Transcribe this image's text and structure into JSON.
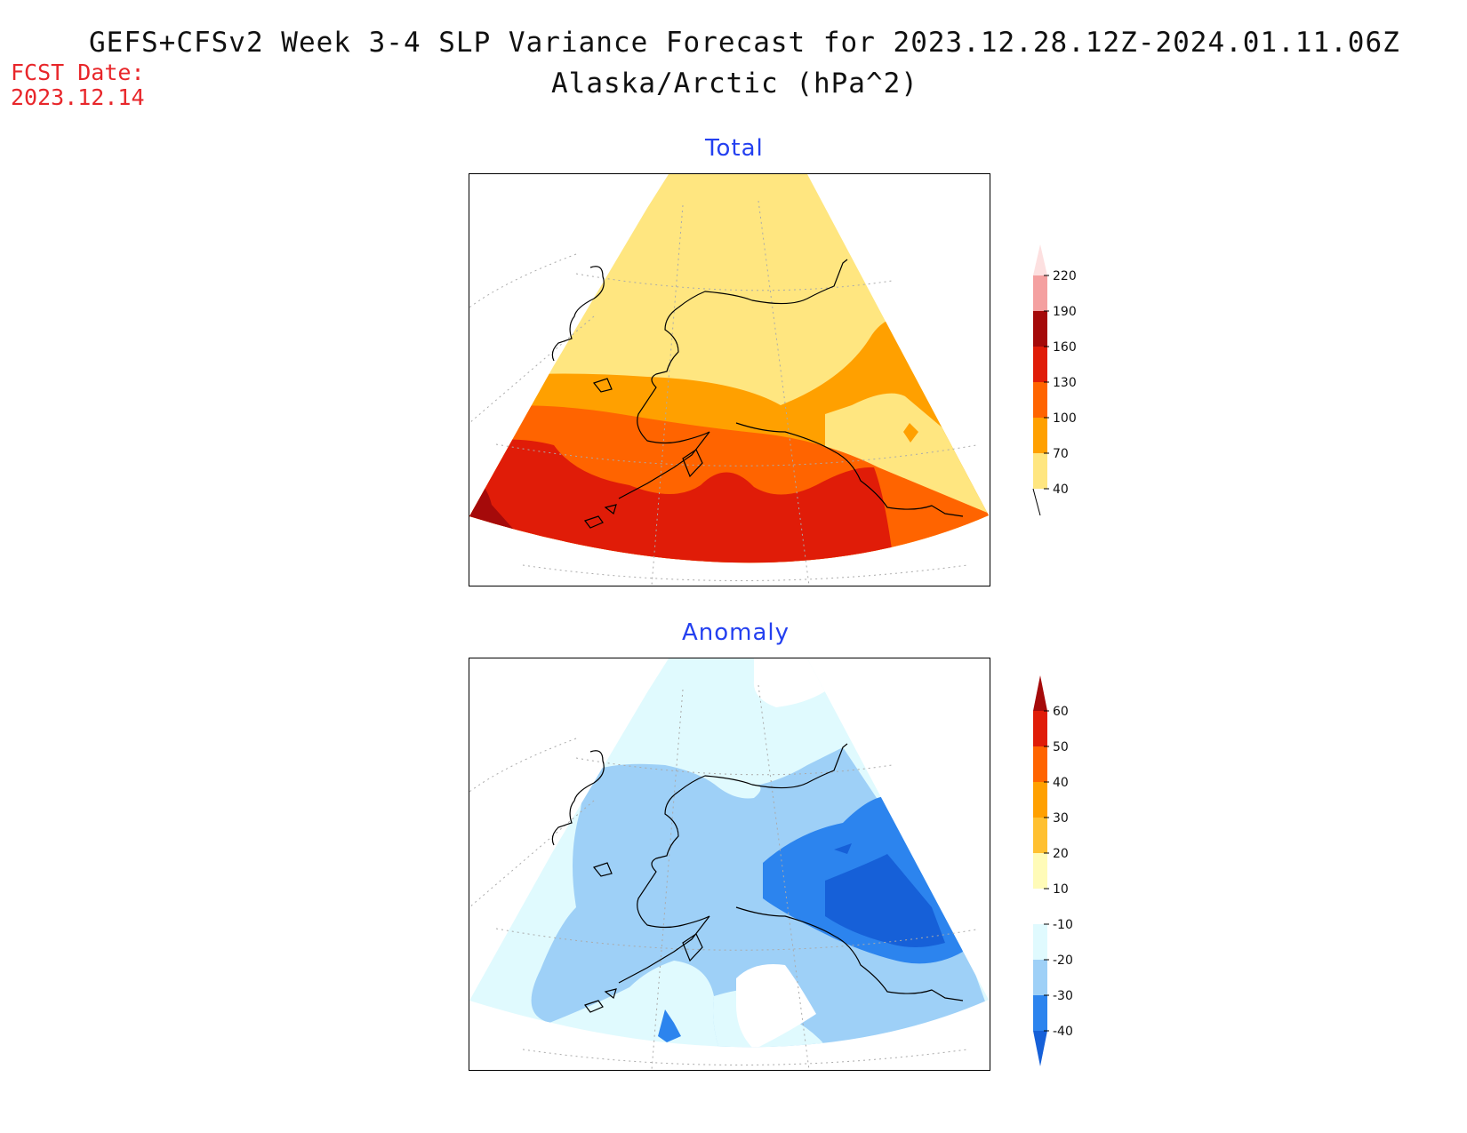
{
  "title": "GEFS+CFSv2 Week 3-4 SLP Variance Forecast for 2023.12.28.12Z-2024.01.11.06Z",
  "subtitle": "Alaska/Arctic (hPa^2)",
  "fcst_label": "FCST Date:",
  "fcst_date": "2023.12.14",
  "panels": [
    {
      "title": "Total",
      "colorbar": {
        "levels": [
          "40",
          "70",
          "100",
          "130",
          "160",
          "190",
          "220"
        ],
        "colors": [
          "#ffe680",
          "#ffa000",
          "#ff6400",
          "#e01c08",
          "#a50a0a",
          "#f4a0a0",
          "#fde0e0"
        ]
      }
    },
    {
      "title": "Anomaly",
      "colorbar": {
        "levels": [
          "-40",
          "-30",
          "-20",
          "-10",
          "10",
          "20",
          "30",
          "40",
          "50",
          "60"
        ],
        "colors": [
          "#1660d8",
          "#2c84ee",
          "#9ed0f7",
          "#e0fafe",
          "#ffffff",
          "#fffbb8",
          "#ffc030",
          "#ffa000",
          "#ff6400",
          "#e01c08",
          "#a50a0a"
        ]
      }
    }
  ]
}
